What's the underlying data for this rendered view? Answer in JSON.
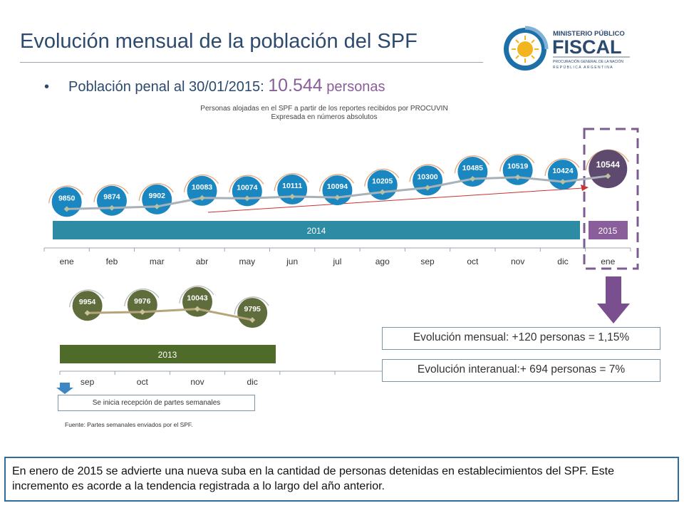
{
  "slide": {
    "title": "Evolución mensual de la población del SPF",
    "subtitle_prefix": "Población penal al 30/01/2015",
    "subtitle_colon": ":",
    "subtitle_value": "10.544",
    "subtitle_unit": "personas",
    "bullet": "•"
  },
  "logo": {
    "line1": "MINISTERIO PÚBLICO",
    "line2": "FISCAL",
    "line3": "PROCURACIÓN GENERAL DE LA NACIÓN",
    "line4": "REPÚBLICA ARGENTINA"
  },
  "chart_caption": {
    "line1": "Personas alojadas en el SPF a partir de los reportes recibidos por PROCUVIN",
    "line2": "Expresada en números absolutos"
  },
  "colors": {
    "blue_bubble": "#1b87c0",
    "purple_bubble": "#5e4a6e",
    "green_bubble": "#5f6d3c",
    "band_2014": "#2d8ba3",
    "band_2015": "#8a5d9b",
    "band_2013": "#4f6b2a",
    "highlight_dash": "#7c5c92",
    "trend_arrow": "#c9332f"
  },
  "chart_data": [
    {
      "type": "line",
      "x": [
        "ene",
        "feb",
        "mar",
        "abr",
        "may",
        "jun",
        "jul",
        "ago",
        "sep",
        "oct",
        "nov",
        "dic",
        "ene"
      ],
      "series": [
        {
          "values": [
            9850,
            9874,
            9902,
            10083,
            10074,
            10111,
            10094,
            10205,
            10300,
            10485,
            10519,
            10424,
            10544
          ]
        }
      ],
      "year_bands": [
        {
          "label": "2014",
          "from": "ene",
          "to": "dic"
        },
        {
          "label": "2015",
          "from": "ene",
          "to": "ene"
        }
      ],
      "highlight_last": true
    },
    {
      "type": "line",
      "x": [
        "sep",
        "oct",
        "nov",
        "dic"
      ],
      "series": [
        {
          "values": [
            9954,
            9976,
            10043,
            9795
          ]
        }
      ],
      "year_bands": [
        {
          "label": "2013",
          "from": "sep",
          "to": "dic"
        }
      ]
    }
  ],
  "notes": {
    "monthly": "Evolución mensual: +120 personas = 1,15%",
    "yearly": "Evolución interanual:+ 694 personas = 7%",
    "weekly": "Se inicia recepción de partes semanales",
    "source": "Fuente: Partes semanales enviados por el SPF."
  },
  "footer": {
    "text": "En enero de 2015 se advierte una nueva suba en la cantidad de personas detenidas en establecimientos del SPF. Este incremento es acorde a la tendencia registrada a lo largo del año anterior."
  }
}
